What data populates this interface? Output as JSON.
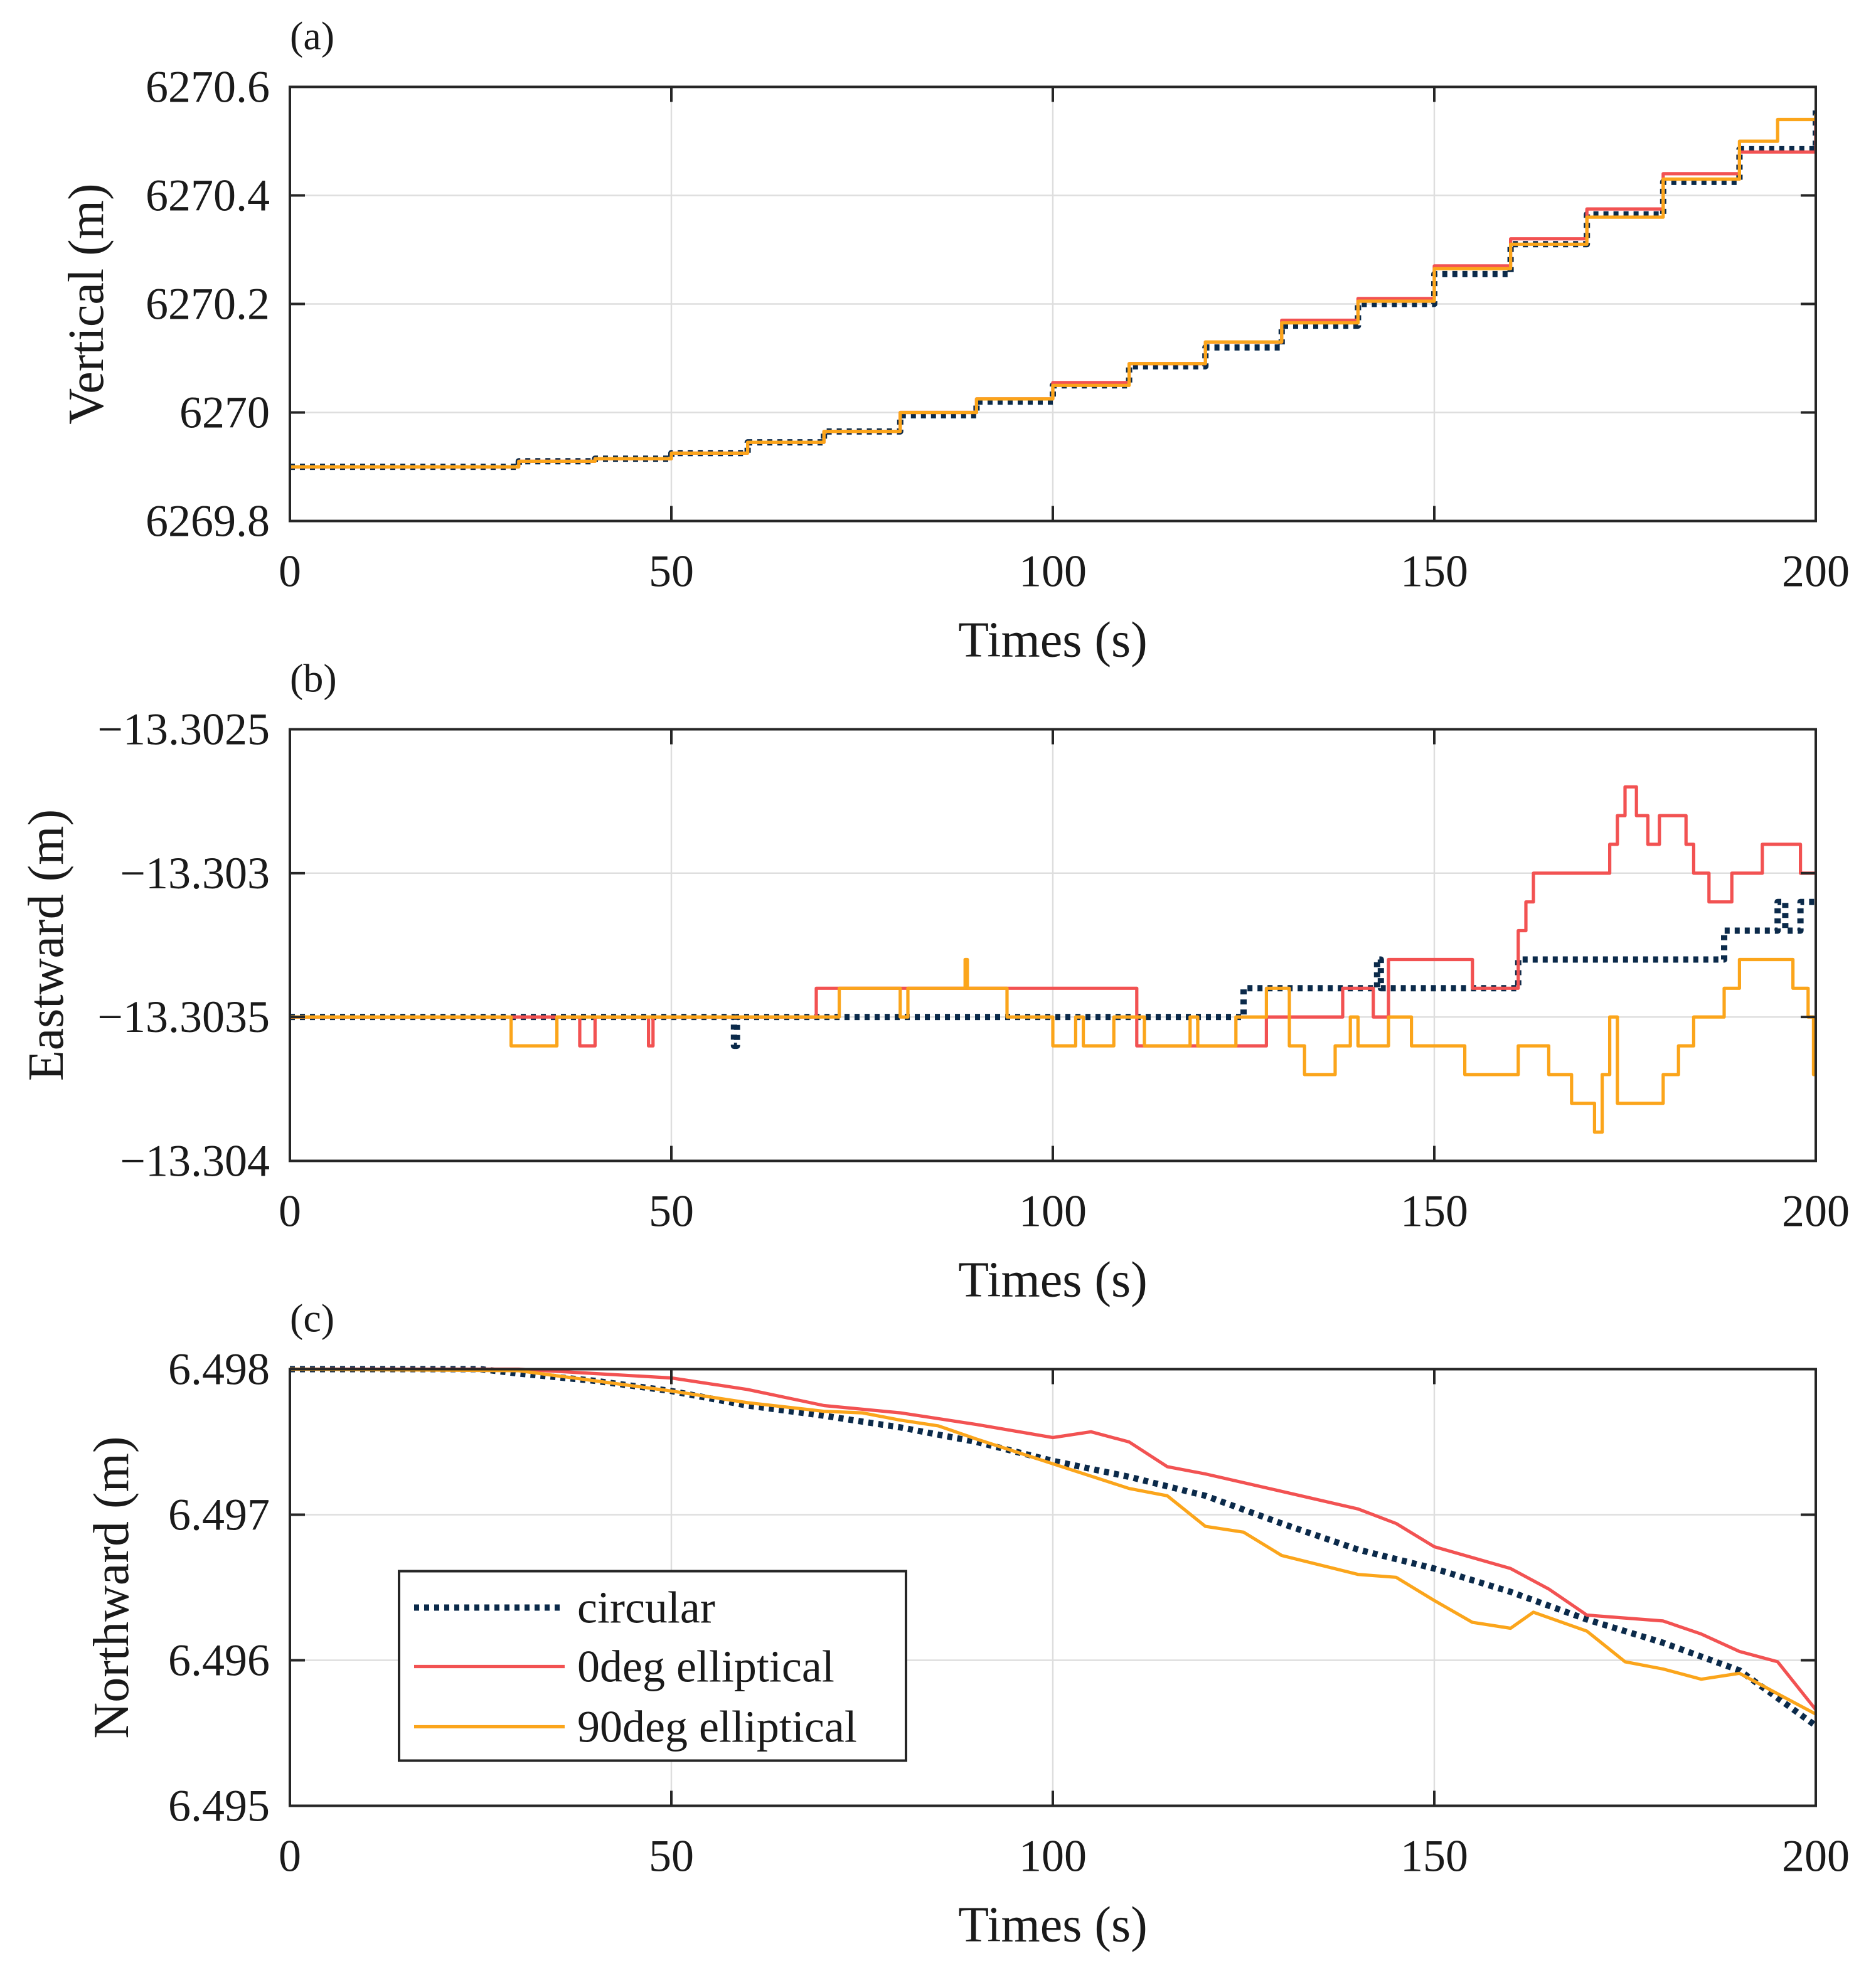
{
  "colors": {
    "circular": "#0b2a4a",
    "red": "#f25252",
    "orange": "#fba51b",
    "grid": "#dedede",
    "axis": "#262626"
  },
  "legend": {
    "placement": "lower-left of panel (c)",
    "entries": [
      "circular",
      "0deg elliptical",
      "90deg elliptical"
    ]
  },
  "chart_data": [
    {
      "type": "line",
      "panel_label": "(a)",
      "xlabel": "Times (s)",
      "ylabel": "Vertical (m)",
      "xlim": [
        0,
        200
      ],
      "ylim": [
        6269.8,
        6270.6
      ],
      "grid": true,
      "step": true,
      "xticks": [
        "0",
        "50",
        "100",
        "150",
        "200"
      ],
      "yticks": [
        6269.8,
        6270,
        6270.2,
        6270.4,
        6270.6
      ],
      "ytick_labels": [
        "6269.8",
        "6270",
        "6270.2",
        "6270.4",
        "6270.6"
      ],
      "series": [
        {
          "name": "circular",
          "points": [
            [
              0,
              6269.9
            ],
            [
              27,
              6269.9
            ],
            [
              30,
              6269.91
            ],
            [
              40,
              6269.915
            ],
            [
              50,
              6269.925
            ],
            [
              60,
              6269.945
            ],
            [
              70,
              6269.965
            ],
            [
              80,
              6269.995
            ],
            [
              90,
              6270.02
            ],
            [
              100,
              6270.05
            ],
            [
              110,
              6270.085
            ],
            [
              120,
              6270.12
            ],
            [
              130,
              6270.16
            ],
            [
              140,
              6270.2
            ],
            [
              150,
              6270.255
            ],
            [
              160,
              6270.31
            ],
            [
              170,
              6270.365
            ],
            [
              180,
              6270.425
            ],
            [
              190,
              6270.485
            ],
            [
              200,
              6270.56
            ]
          ]
        },
        {
          "name": "0deg elliptical",
          "points": [
            [
              0,
              6269.9
            ],
            [
              27,
              6269.9
            ],
            [
              30,
              6269.91
            ],
            [
              40,
              6269.915
            ],
            [
              50,
              6269.925
            ],
            [
              60,
              6269.945
            ],
            [
              70,
              6269.965
            ],
            [
              80,
              6270.0
            ],
            [
              90,
              6270.025
            ],
            [
              100,
              6270.055
            ],
            [
              110,
              6270.09
            ],
            [
              120,
              6270.13
            ],
            [
              130,
              6270.17
            ],
            [
              140,
              6270.21
            ],
            [
              150,
              6270.27
            ],
            [
              160,
              6270.32
            ],
            [
              170,
              6270.375
            ],
            [
              180,
              6270.44
            ],
            [
              190,
              6270.48
            ],
            [
              200,
              6270.55
            ]
          ]
        },
        {
          "name": "90deg elliptical",
          "points": [
            [
              0,
              6269.9
            ],
            [
              27,
              6269.9
            ],
            [
              30,
              6269.91
            ],
            [
              40,
              6269.915
            ],
            [
              50,
              6269.925
            ],
            [
              60,
              6269.945
            ],
            [
              70,
              6269.965
            ],
            [
              80,
              6270.0
            ],
            [
              90,
              6270.025
            ],
            [
              100,
              6270.05
            ],
            [
              110,
              6270.09
            ],
            [
              120,
              6270.13
            ],
            [
              130,
              6270.165
            ],
            [
              140,
              6270.205
            ],
            [
              150,
              6270.265
            ],
            [
              160,
              6270.31
            ],
            [
              170,
              6270.36
            ],
            [
              180,
              6270.43
            ],
            [
              190,
              6270.5
            ],
            [
              195,
              6270.54
            ],
            [
              200,
              6270.55
            ]
          ]
        }
      ]
    },
    {
      "type": "line",
      "panel_label": "(b)",
      "xlabel": "Times (s)",
      "ylabel": "Eastward (m)",
      "xlim": [
        0,
        200
      ],
      "ylim": [
        -13.304,
        -13.3025
      ],
      "grid": true,
      "step": true,
      "xticks": [
        "0",
        "50",
        "100",
        "150",
        "200"
      ],
      "yticks": [
        -13.304,
        -13.3035,
        -13.303,
        -13.3025
      ],
      "ytick_labels": [
        "−13.304",
        "−13.3035",
        "−13.303",
        "−13.3025"
      ],
      "series": [
        {
          "name": "circular",
          "points": [
            [
              0,
              -13.3035
            ],
            [
              58,
              -13.3035
            ],
            [
              58.2,
              -13.3036
            ],
            [
              58.6,
              -13.3035
            ],
            [
              124,
              -13.3035
            ],
            [
              125,
              -13.3034
            ],
            [
              142,
              -13.3034
            ],
            [
              142.5,
              -13.3033
            ],
            [
              143,
              -13.3034
            ],
            [
              160,
              -13.3034
            ],
            [
              161,
              -13.3033
            ],
            [
              187,
              -13.3033
            ],
            [
              188,
              -13.3032
            ],
            [
              194,
              -13.3032
            ],
            [
              195,
              -13.3031
            ],
            [
              196,
              -13.3032
            ],
            [
              198,
              -13.3031
            ],
            [
              200,
              -13.3031
            ]
          ]
        },
        {
          "name": "0deg elliptical",
          "points": [
            [
              0,
              -13.3035
            ],
            [
              38,
              -13.3036
            ],
            [
              40,
              -13.3035
            ],
            [
              47,
              -13.3036
            ],
            [
              47.6,
              -13.3035
            ],
            [
              69,
              -13.3034
            ],
            [
              111,
              -13.3036
            ],
            [
              128,
              -13.3035
            ],
            [
              138,
              -13.3034
            ],
            [
              142,
              -13.3035
            ],
            [
              144,
              -13.3033
            ],
            [
              155,
              -13.3034
            ],
            [
              161,
              -13.3032
            ],
            [
              162,
              -13.3031
            ],
            [
              163,
              -13.303
            ],
            [
              173,
              -13.3029
            ],
            [
              174,
              -13.3028
            ],
            [
              175,
              -13.3027
            ],
            [
              176.5,
              -13.3028
            ],
            [
              178,
              -13.3029
            ],
            [
              179.5,
              -13.3028
            ],
            [
              183,
              -13.3029
            ],
            [
              184,
              -13.303
            ],
            [
              186,
              -13.3031
            ],
            [
              189,
              -13.303
            ],
            [
              193,
              -13.3029
            ],
            [
              198,
              -13.303
            ],
            [
              200,
              -13.303
            ]
          ]
        },
        {
          "name": "90deg elliptical",
          "points": [
            [
              0,
              -13.3035
            ],
            [
              29,
              -13.3036
            ],
            [
              35,
              -13.3035
            ],
            [
              72,
              -13.3034
            ],
            [
              80,
              -13.3035
            ],
            [
              81,
              -13.3034
            ],
            [
              88.5,
              -13.3033
            ],
            [
              88.8,
              -13.3034
            ],
            [
              94,
              -13.3035
            ],
            [
              100,
              -13.3036
            ],
            [
              103,
              -13.3035
            ],
            [
              104,
              -13.3036
            ],
            [
              108,
              -13.3035
            ],
            [
              112,
              -13.3036
            ],
            [
              118,
              -13.3035
            ],
            [
              119,
              -13.3036
            ],
            [
              124,
              -13.3035
            ],
            [
              128,
              -13.3034
            ],
            [
              131,
              -13.3036
            ],
            [
              133,
              -13.3037
            ],
            [
              137,
              -13.3036
            ],
            [
              139,
              -13.3035
            ],
            [
              140,
              -13.3036
            ],
            [
              144,
              -13.3035
            ],
            [
              147,
              -13.3036
            ],
            [
              154,
              -13.3037
            ],
            [
              161,
              -13.3036
            ],
            [
              165,
              -13.3037
            ],
            [
              168,
              -13.3038
            ],
            [
              171,
              -13.3039
            ],
            [
              172,
              -13.3037
            ],
            [
              173,
              -13.3035
            ],
            [
              174,
              -13.3038
            ],
            [
              180,
              -13.3037
            ],
            [
              182,
              -13.3036
            ],
            [
              184,
              -13.3035
            ],
            [
              188,
              -13.3034
            ],
            [
              190,
              -13.3033
            ],
            [
              197,
              -13.3034
            ],
            [
              199,
              -13.3035
            ],
            [
              199.7,
              -13.3037
            ],
            [
              200,
              -13.3037
            ]
          ]
        }
      ]
    },
    {
      "type": "line",
      "panel_label": "(c)",
      "xlabel": "Times (s)",
      "ylabel": "Northward (m)",
      "xlim": [
        0,
        200
      ],
      "ylim": [
        6.495,
        6.498
      ],
      "grid": true,
      "step": false,
      "xticks": [
        "0",
        "50",
        "100",
        "150",
        "200"
      ],
      "yticks": [
        6.495,
        6.496,
        6.497,
        6.498
      ],
      "ytick_labels": [
        "6.495",
        "6.496",
        "6.497",
        "6.498"
      ],
      "series": [
        {
          "name": "circular",
          "points": [
            [
              0,
              6.498
            ],
            [
              25,
              6.498
            ],
            [
              30,
              6.49797
            ],
            [
              40,
              6.49792
            ],
            [
              50,
              6.49785
            ],
            [
              60,
              6.49775
            ],
            [
              70,
              6.49768
            ],
            [
              80,
              6.4976
            ],
            [
              90,
              6.4975
            ],
            [
              100,
              6.49737
            ],
            [
              110,
              6.49726
            ],
            [
              120,
              6.49713
            ],
            [
              130,
              6.49694
            ],
            [
              140,
              6.49676
            ],
            [
              150,
              6.49663
            ],
            [
              160,
              6.49647
            ],
            [
              170,
              6.49628
            ],
            [
              180,
              6.49612
            ],
            [
              190,
              6.49593
            ],
            [
              200,
              6.49555
            ]
          ]
        },
        {
          "name": "0deg elliptical",
          "points": [
            [
              0,
              6.498
            ],
            [
              30,
              6.498
            ],
            [
              40,
              6.49797
            ],
            [
              50,
              6.49794
            ],
            [
              60,
              6.49786
            ],
            [
              70,
              6.49775
            ],
            [
              80,
              6.4977
            ],
            [
              90,
              6.49762
            ],
            [
              100,
              6.49753
            ],
            [
              105,
              6.49757
            ],
            [
              110,
              6.4975
            ],
            [
              115,
              6.49733
            ],
            [
              120,
              6.49728
            ],
            [
              130,
              6.49716
            ],
            [
              140,
              6.49704
            ],
            [
              145,
              6.49694
            ],
            [
              150,
              6.49678
            ],
            [
              160,
              6.49663
            ],
            [
              165,
              6.49649
            ],
            [
              170,
              6.49631
            ],
            [
              180,
              6.49627
            ],
            [
              185,
              6.49618
            ],
            [
              190,
              6.49606
            ],
            [
              195,
              6.49599
            ],
            [
              200,
              6.49566
            ]
          ]
        },
        {
          "name": "90deg elliptical",
          "points": [
            [
              0,
              6.498
            ],
            [
              30,
              6.49799
            ],
            [
              40,
              6.49792
            ],
            [
              50,
              6.49785
            ],
            [
              60,
              6.49777
            ],
            [
              70,
              6.49771
            ],
            [
              75,
              6.4977
            ],
            [
              80,
              6.49765
            ],
            [
              85,
              6.49761
            ],
            [
              90,
              6.49752
            ],
            [
              100,
              6.49735
            ],
            [
              110,
              6.49718
            ],
            [
              115,
              6.49713
            ],
            [
              120,
              6.49692
            ],
            [
              125,
              6.49688
            ],
            [
              130,
              6.49672
            ],
            [
              140,
              6.49659
            ],
            [
              145,
              6.49657
            ],
            [
              150,
              6.49641
            ],
            [
              155,
              6.49626
            ],
            [
              160,
              6.49622
            ],
            [
              163,
              6.49633
            ],
            [
              170,
              6.4962
            ],
            [
              175,
              6.49599
            ],
            [
              180,
              6.49594
            ],
            [
              185,
              6.49587
            ],
            [
              190,
              6.49591
            ],
            [
              195,
              6.49577
            ],
            [
              200,
              6.49563
            ]
          ]
        }
      ]
    }
  ]
}
